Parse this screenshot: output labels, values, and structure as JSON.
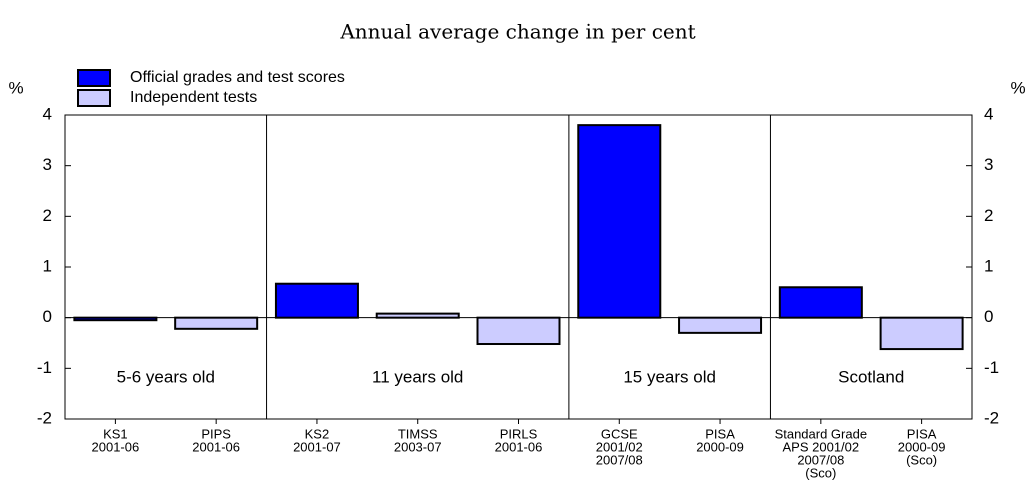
{
  "chart_data": {
    "type": "bar",
    "title": "Annual average change in per cent",
    "ylabel": "%",
    "y2label": "%",
    "categories": [
      [
        "KS1",
        "2001-06"
      ],
      [
        "PIPS",
        "2001-06"
      ],
      [
        "KS2",
        "2001-07"
      ],
      [
        "TIMSS",
        "2003-07"
      ],
      [
        "PIRLS",
        "2001-06"
      ],
      [
        "GCSE",
        "2001/02",
        "2007/08"
      ],
      [
        "PISA",
        "2000-09"
      ],
      [
        "Standard Grade",
        "APS 2001/02",
        "2007/08",
        "(Sco)"
      ],
      [
        "PISA",
        "2000-09",
        "(Sco)"
      ]
    ],
    "series": [
      {
        "name": "Official grades and test scores",
        "color": "#0000ff",
        "values": [
          -0.05,
          null,
          0.67,
          null,
          null,
          3.8,
          null,
          0.6,
          null
        ]
      },
      {
        "name": "Independent tests",
        "color": "#ccccff",
        "values": [
          null,
          -0.22,
          null,
          0.08,
          -0.52,
          null,
          -0.3,
          null,
          -0.62
        ]
      }
    ],
    "groups": [
      {
        "label": "5-6 years old",
        "size": 2
      },
      {
        "label": "11 years old",
        "size": 3
      },
      {
        "label": "15 years old",
        "size": 2
      },
      {
        "label": "Scotland",
        "size": 2
      }
    ],
    "ylim": [
      -2,
      4
    ],
    "yticks": [
      -2,
      -1,
      0,
      1,
      2,
      3,
      4
    ],
    "y2lim": [
      -2,
      4
    ],
    "y2ticks": [
      -2,
      -1,
      0,
      1,
      2,
      3,
      4
    ],
    "legend": "top-left"
  }
}
